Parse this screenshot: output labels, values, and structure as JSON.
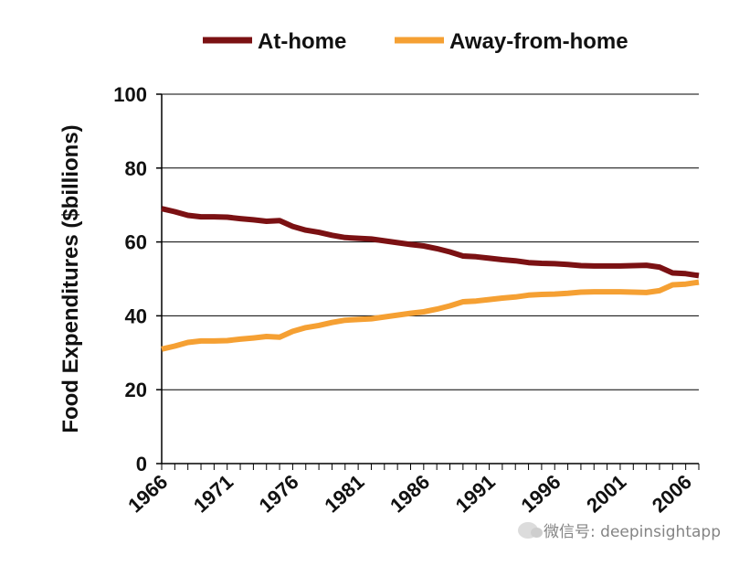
{
  "chart_data": {
    "type": "line",
    "title": "",
    "xlabel": "",
    "ylabel": "Food Expenditures ($billions)",
    "ylim": [
      0,
      100
    ],
    "yticks": [
      0,
      20,
      40,
      60,
      80,
      100
    ],
    "xlim": [
      1967,
      2008
    ],
    "xtick_labels": [
      "1966",
      "1971",
      "1976",
      "1981",
      "1986",
      "1991",
      "1996",
      "2001",
      "2006"
    ],
    "grid": "horizontal",
    "legend_position": "top",
    "series": [
      {
        "name": "At-home",
        "color": "#7b1113",
        "points": [
          [
            1967,
            69.0
          ],
          [
            1968,
            68.2
          ],
          [
            1969,
            67.2
          ],
          [
            1970,
            66.8
          ],
          [
            1971,
            66.8
          ],
          [
            1972,
            66.7
          ],
          [
            1973,
            66.3
          ],
          [
            1974,
            66.0
          ],
          [
            1975,
            65.6
          ],
          [
            1976,
            65.8
          ],
          [
            1977,
            64.2
          ],
          [
            1978,
            63.2
          ],
          [
            1979,
            62.6
          ],
          [
            1980,
            61.8
          ],
          [
            1981,
            61.2
          ],
          [
            1982,
            61.0
          ],
          [
            1983,
            60.8
          ],
          [
            1984,
            60.3
          ],
          [
            1985,
            59.8
          ],
          [
            1986,
            59.3
          ],
          [
            1987,
            58.9
          ],
          [
            1988,
            58.2
          ],
          [
            1989,
            57.3
          ],
          [
            1990,
            56.2
          ],
          [
            1991,
            56.0
          ],
          [
            1992,
            55.6
          ],
          [
            1993,
            55.2
          ],
          [
            1994,
            54.9
          ],
          [
            1995,
            54.4
          ],
          [
            1996,
            54.2
          ],
          [
            1997,
            54.1
          ],
          [
            1998,
            53.9
          ],
          [
            1999,
            53.6
          ],
          [
            2000,
            53.5
          ],
          [
            2001,
            53.5
          ],
          [
            2002,
            53.5
          ],
          [
            2003,
            53.6
          ],
          [
            2004,
            53.7
          ],
          [
            2005,
            53.2
          ],
          [
            2006,
            51.6
          ],
          [
            2007,
            51.4
          ],
          [
            2008,
            50.9
          ]
        ]
      },
      {
        "name": "Away-from-home",
        "color": "#f5a033",
        "points": [
          [
            1967,
            31.0
          ],
          [
            1968,
            31.8
          ],
          [
            1969,
            32.8
          ],
          [
            1970,
            33.2
          ],
          [
            1971,
            33.2
          ],
          [
            1972,
            33.3
          ],
          [
            1973,
            33.7
          ],
          [
            1974,
            34.0
          ],
          [
            1975,
            34.4
          ],
          [
            1976,
            34.2
          ],
          [
            1977,
            35.8
          ],
          [
            1978,
            36.8
          ],
          [
            1979,
            37.4
          ],
          [
            1980,
            38.2
          ],
          [
            1981,
            38.8
          ],
          [
            1982,
            39.0
          ],
          [
            1983,
            39.2
          ],
          [
            1984,
            39.7
          ],
          [
            1985,
            40.2
          ],
          [
            1986,
            40.7
          ],
          [
            1987,
            41.1
          ],
          [
            1988,
            41.8
          ],
          [
            1989,
            42.7
          ],
          [
            1990,
            43.8
          ],
          [
            1991,
            44.0
          ],
          [
            1992,
            44.4
          ],
          [
            1993,
            44.8
          ],
          [
            1994,
            45.1
          ],
          [
            1995,
            45.6
          ],
          [
            1996,
            45.8
          ],
          [
            1997,
            45.9
          ],
          [
            1998,
            46.1
          ],
          [
            1999,
            46.4
          ],
          [
            2000,
            46.5
          ],
          [
            2001,
            46.5
          ],
          [
            2002,
            46.5
          ],
          [
            2003,
            46.4
          ],
          [
            2004,
            46.3
          ],
          [
            2005,
            46.8
          ],
          [
            2006,
            48.4
          ],
          [
            2007,
            48.6
          ],
          [
            2008,
            49.1
          ]
        ]
      }
    ]
  },
  "watermark": {
    "text": "微信号: deepinsightapp"
  }
}
